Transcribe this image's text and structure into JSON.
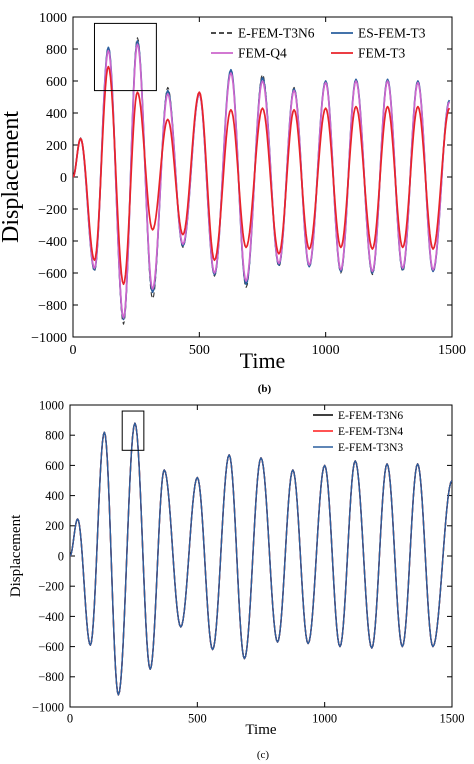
{
  "colors": {
    "E-FEM-T3N6": "#333333",
    "FEM-Q4": "#cc66cc",
    "ES-FEM-T3": "#2a5f9e",
    "FEM-T3": "#e8232a",
    "E-FEM-T3N6_c": "#000000",
    "E-FEM-T3N4_c": "#ff1a1a",
    "E-FEM-T3N3_c": "#2a5f9e"
  },
  "chart_data": [
    {
      "type": "line",
      "caption": "(b)",
      "xlabel": "Time",
      "ylabel": "Displacement",
      "xlim": [
        0,
        1500
      ],
      "ylim": [
        -1000,
        1000
      ],
      "xticks": [
        "0",
        "500",
        "1000",
        "1500"
      ],
      "yticks": [
        "−1000",
        "−800",
        "−600",
        "−400",
        "−200",
        "0",
        "200",
        "400",
        "600",
        "800",
        "1000"
      ],
      "legend_position": "top-right",
      "zoom_box": {
        "x": [
          85,
          330
        ],
        "y": [
          540,
          960
        ]
      },
      "series": [
        {
          "name": "E-FEM-T3N6",
          "style": "dashed",
          "x": [
            0,
            30,
            85,
            140,
            200,
            255,
            315,
            375,
            435,
            500,
            560,
            625,
            685,
            750,
            815,
            875,
            935,
            1000,
            1060,
            1120,
            1185,
            1245,
            1305,
            1365,
            1425,
            1490
          ],
          "values": [
            0,
            245,
            -590,
            800,
            -920,
            870,
            -760,
            560,
            -440,
            530,
            -620,
            660,
            -690,
            640,
            -560,
            560,
            -550,
            600,
            -600,
            600,
            -610,
            600,
            -590,
            590,
            -590,
            480
          ]
        },
        {
          "name": "ES-FEM-T3",
          "style": "solid",
          "x": [
            0,
            30,
            85,
            140,
            200,
            255,
            315,
            375,
            435,
            500,
            560,
            625,
            685,
            750,
            815,
            875,
            935,
            1000,
            1060,
            1120,
            1185,
            1245,
            1305,
            1365,
            1425,
            1490
          ],
          "values": [
            0,
            240,
            -580,
            810,
            -890,
            850,
            -720,
            540,
            -430,
            520,
            -610,
            670,
            -670,
            620,
            -550,
            550,
            -560,
            600,
            -590,
            610,
            -600,
            610,
            -580,
            600,
            -590,
            480
          ]
        },
        {
          "name": "FEM-Q4",
          "style": "solid",
          "x": [
            0,
            30,
            85,
            140,
            200,
            255,
            315,
            375,
            435,
            500,
            560,
            625,
            685,
            750,
            815,
            875,
            935,
            1000,
            1060,
            1120,
            1185,
            1245,
            1305,
            1365,
            1425,
            1490
          ],
          "values": [
            0,
            240,
            -570,
            790,
            -880,
            830,
            -700,
            520,
            -420,
            520,
            -600,
            650,
            -650,
            600,
            -540,
            540,
            -550,
            590,
            -580,
            600,
            -590,
            600,
            -570,
            590,
            -580,
            470
          ]
        },
        {
          "name": "FEM-T3",
          "style": "solid",
          "x": [
            0,
            30,
            85,
            140,
            200,
            255,
            315,
            375,
            435,
            500,
            560,
            625,
            685,
            750,
            815,
            875,
            935,
            1000,
            1060,
            1120,
            1185,
            1245,
            1305,
            1365,
            1425,
            1490
          ],
          "values": [
            0,
            240,
            -520,
            690,
            -670,
            530,
            -330,
            360,
            -360,
            530,
            -520,
            420,
            -440,
            430,
            -480,
            420,
            -450,
            430,
            -440,
            440,
            -450,
            440,
            -440,
            440,
            -450,
            430
          ]
        }
      ]
    },
    {
      "type": "line",
      "caption": "(c)",
      "xlabel": "Time",
      "ylabel": "Displacement",
      "xlim": [
        0,
        1500
      ],
      "ylim": [
        -1000,
        1000
      ],
      "xticks": [
        "0",
        "500",
        "1000",
        "1500"
      ],
      "yticks": [
        "−1000",
        "−800",
        "−600",
        "−400",
        "−200",
        "0",
        "200",
        "400",
        "600",
        "800",
        "1000"
      ],
      "legend_position": "top-right",
      "zoom_box": {
        "x": [
          205,
          290
        ],
        "y": [
          700,
          960
        ]
      },
      "series": [
        {
          "name": "E-FEM-T3N6",
          "style": "solid",
          "x": [
            0,
            30,
            80,
            135,
            190,
            255,
            315,
            370,
            435,
            500,
            560,
            625,
            685,
            750,
            815,
            875,
            935,
            1000,
            1060,
            1120,
            1185,
            1245,
            1305,
            1365,
            1425,
            1500
          ],
          "values": [
            0,
            245,
            -590,
            820,
            -920,
            880,
            -750,
            570,
            -470,
            520,
            -620,
            670,
            -680,
            650,
            -570,
            570,
            -580,
            600,
            -600,
            630,
            -610,
            610,
            -600,
            610,
            -600,
            500
          ]
        },
        {
          "name": "E-FEM-T3N4",
          "style": "solid",
          "x": [
            0,
            30,
            80,
            135,
            190,
            255,
            315,
            370,
            435,
            500,
            560,
            625,
            685,
            750,
            815,
            875,
            935,
            1000,
            1060,
            1120,
            1185,
            1245,
            1305,
            1365,
            1425,
            1500
          ],
          "values": [
            0,
            245,
            -590,
            820,
            -920,
            880,
            -750,
            570,
            -470,
            520,
            -620,
            670,
            -680,
            650,
            -570,
            570,
            -580,
            600,
            -600,
            630,
            -610,
            610,
            -600,
            610,
            -600,
            500
          ]
        },
        {
          "name": "E-FEM-T3N3",
          "style": "solid",
          "x": [
            0,
            30,
            80,
            135,
            190,
            255,
            315,
            370,
            435,
            500,
            560,
            625,
            685,
            750,
            815,
            875,
            935,
            1000,
            1060,
            1120,
            1185,
            1245,
            1305,
            1365,
            1425,
            1500
          ],
          "values": [
            0,
            245,
            -590,
            820,
            -920,
            880,
            -750,
            570,
            -470,
            520,
            -620,
            670,
            -680,
            650,
            -570,
            570,
            -580,
            600,
            -600,
            630,
            -610,
            610,
            -600,
            610,
            -600,
            500
          ]
        }
      ]
    }
  ]
}
